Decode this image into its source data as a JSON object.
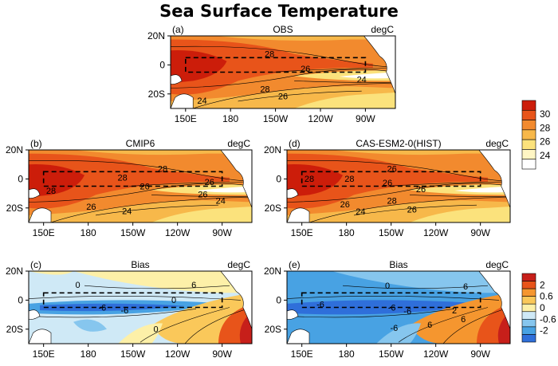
{
  "title": "Sea Surface Temperature",
  "chart_data": [
    {
      "type": "heatmap",
      "panel_label": "(a)",
      "title": "OBS",
      "units": "degC",
      "region": "Tropical Pacific",
      "x_ticks": [
        "150E",
        "180",
        "150W",
        "120W",
        "90W"
      ],
      "y_ticks": [
        "20N",
        "0",
        "20S"
      ],
      "xlim": [
        140,
        290
      ],
      "ylim": [
        -30,
        20
      ],
      "contour_labels": [
        "28",
        "26",
        "24",
        "28",
        "26",
        "24"
      ],
      "colorbar": "colorbar-temperature"
    },
    {
      "type": "heatmap",
      "panel_label": "(b)",
      "title": "CMIP6",
      "units": "degC",
      "x_ticks": [
        "150E",
        "180",
        "150W",
        "120W",
        "90W"
      ],
      "y_ticks": [
        "20N",
        "0",
        "20S"
      ],
      "xlim": [
        140,
        290
      ],
      "ylim": [
        -30,
        20
      ],
      "contour_labels": [
        "28",
        "28",
        "28",
        "26",
        "26",
        "26",
        "26",
        "24",
        "24"
      ],
      "colorbar": "colorbar-temperature"
    },
    {
      "type": "heatmap",
      "panel_label": "(d)",
      "title": "CAS-ESM2-0(HIST)",
      "units": "degC",
      "x_ticks": [
        "150E",
        "180",
        "150W",
        "120W",
        "90W"
      ],
      "y_ticks": [
        "20N",
        "0",
        "20S"
      ],
      "xlim": [
        140,
        290
      ],
      "ylim": [
        -30,
        20
      ],
      "contour_labels": [
        "28",
        "26",
        "28",
        "26",
        "26",
        "26",
        "28",
        "26",
        "24"
      ],
      "colorbar": "colorbar-temperature"
    },
    {
      "type": "heatmap",
      "panel_label": "(c)",
      "title": "Bias",
      "units": "degC",
      "x_ticks": [
        "150E",
        "180",
        "150W",
        "120W",
        "90W"
      ],
      "y_ticks": [
        "20N",
        "0",
        "20S"
      ],
      "xlim": [
        140,
        290
      ],
      "ylim": [
        -30,
        20
      ],
      "contour_labels": [
        "0",
        "-6",
        "-6",
        "0",
        "6",
        "0"
      ],
      "colorbar": "colorbar-bias"
    },
    {
      "type": "heatmap",
      "panel_label": "(e)",
      "title": "Bias",
      "units": "degC",
      "x_ticks": [
        "150E",
        "180",
        "150W",
        "120W",
        "90W"
      ],
      "y_ticks": [
        "20N",
        "0",
        "20S"
      ],
      "xlim": [
        140,
        290
      ],
      "ylim": [
        -30,
        20
      ],
      "contour_labels": [
        "0",
        "6",
        "-6",
        "-6",
        "-6",
        "2",
        "6",
        "6",
        "-6"
      ],
      "colorbar": "colorbar-bias"
    }
  ],
  "colorbars": {
    "temperature": {
      "labels": [
        "30",
        "28",
        "26",
        "24"
      ],
      "colors": [
        "#cc1d0a",
        "#e8541a",
        "#f28a2e",
        "#f7b84a",
        "#fbe27c",
        "#fff6c4",
        "#ffffff"
      ]
    },
    "bias": {
      "labels": [
        "2",
        "0.6",
        "0",
        "-0.6",
        "-2"
      ],
      "colors": [
        "#c71f1a",
        "#e8541a",
        "#f5962f",
        "#fac85a",
        "#fdf0a8",
        "#cfe9f6",
        "#86c6ee",
        "#48a2e3",
        "#2f6fda"
      ]
    }
  },
  "colors": {
    "warm_pool": "#e24d1c",
    "cold_tongue": "#ffffff",
    "land": "#ffffff",
    "box_line": "#000000"
  }
}
